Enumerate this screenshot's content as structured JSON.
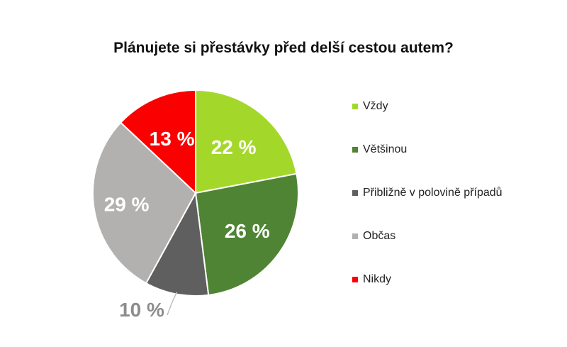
{
  "chart_data": {
    "type": "pie",
    "title": "Plánujete si přestávky před delší cestou autem?",
    "slices": [
      {
        "label": "Vždy",
        "value": 22,
        "display": "22 %",
        "color": "#a3d82b",
        "label_color": "#ffffff"
      },
      {
        "label": "Většinou",
        "value": 26,
        "display": "26 %",
        "color": "#4f8434",
        "label_color": "#ffffff"
      },
      {
        "label": "Přibližně v polovině případů",
        "value": 10,
        "display": "10 %",
        "color": "#5f5f5f",
        "label_color": "#8c8c8c"
      },
      {
        "label": "Občas",
        "value": 29,
        "display": "29 %",
        "color": "#b3b1b0",
        "label_color": "#ffffff"
      },
      {
        "label": "Nikdy",
        "value": 13,
        "display": "13 %",
        "color": "#fa0000",
        "label_color": "#ffffff"
      }
    ],
    "start_angle": "12 o'clock",
    "direction": "clockwise",
    "legend_position": "right"
  }
}
